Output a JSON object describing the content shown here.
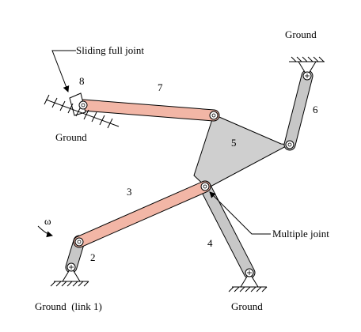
{
  "diagram": {
    "labels": {
      "sliding_full_joint": "Sliding full joint",
      "ground_top_right": "Ground",
      "ground_left": "Ground",
      "ground_bottom_left": "Ground  (link 1)",
      "ground_bottom_middle": "Ground",
      "multiple_joint": "Multiple joint",
      "omega": "ω"
    },
    "links": {
      "link2": "2",
      "link3": "3",
      "link4": "4",
      "link5": "5",
      "link6": "6",
      "link7": "7",
      "link8": "8"
    },
    "colors": {
      "coupler_link": "#f2b6a6",
      "gray_link": "#bdbdbd",
      "plate": "#cfcfcf",
      "outline": "#000000"
    }
  }
}
